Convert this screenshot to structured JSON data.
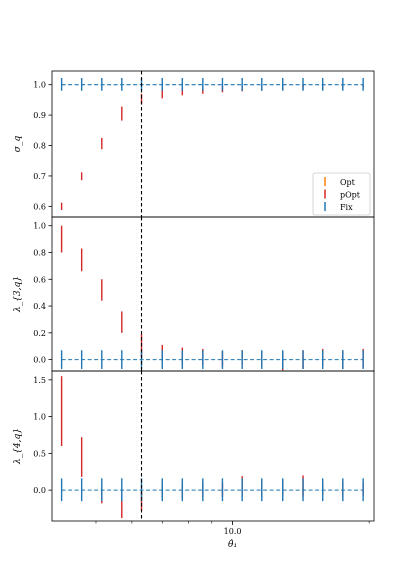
{
  "chart_data": {
    "type": "errorbar",
    "x_scale": "log",
    "x_positions": [
      4.2,
      4.65,
      5.15,
      5.7,
      6.3,
      7.0,
      7.75,
      8.6,
      9.5,
      10.5,
      11.6,
      12.9,
      14.3,
      15.8,
      17.5,
      19.4
    ],
    "vline_x": 6.3,
    "xlabel": "θ̂₁",
    "x_ticks": [
      {
        "value": 10.0,
        "label": "10.0"
      }
    ],
    "legend": {
      "placement": "lower-right",
      "panel": 0,
      "entries": [
        "Opt",
        "pOpt",
        "Fix"
      ]
    },
    "colors": {
      "Opt": "#ff7f0e",
      "pOpt": "#d62728",
      "Fix": "#1f77b4",
      "vline": "#000000"
    },
    "panels": [
      {
        "ylabel": "σ_q",
        "ylim": [
          0.565,
          1.045
        ],
        "yticks": [
          0.6,
          0.7,
          0.8,
          0.9,
          1.0
        ],
        "ytick_labels": [
          "0.6",
          "0.7",
          "0.8",
          "0.9",
          "1.0"
        ],
        "series": [
          {
            "name": "pOpt",
            "lo": [
              0.588,
              0.686,
              0.788,
              0.882,
              0.935,
              0.955,
              0.965,
              0.97,
              0.975,
              0.978,
              0.98,
              0.982,
              0.985,
              0.986,
              0.988,
              0.99
            ],
            "hi": [
              0.612,
              0.712,
              0.825,
              0.928,
              0.97,
              0.99,
              0.993,
              0.995,
              0.996,
              0.997,
              0.998,
              0.998,
              0.999,
              0.999,
              0.999,
              0.999
            ]
          },
          {
            "name": "Fix",
            "lo": [
              0.98,
              0.98,
              0.98,
              0.98,
              0.98,
              0.98,
              0.98,
              0.98,
              0.98,
              0.98,
              0.98,
              0.98,
              0.98,
              0.98,
              0.98,
              0.98
            ],
            "hi": [
              1.022,
              1.022,
              1.022,
              1.022,
              1.022,
              1.022,
              1.022,
              1.022,
              1.022,
              1.022,
              1.022,
              1.022,
              1.022,
              1.022,
              1.022,
              1.022
            ],
            "line": 1.0
          }
        ]
      },
      {
        "ylabel": "λ_{3,q}",
        "ylim": [
          -0.085,
          1.065
        ],
        "yticks": [
          0.0,
          0.2,
          0.4,
          0.6,
          0.8,
          1.0
        ],
        "ytick_labels": [
          "0.0",
          "0.2",
          "0.4",
          "0.6",
          "0.8",
          "1.0"
        ],
        "series": [
          {
            "name": "pOpt",
            "lo": [
              0.8,
              0.66,
              0.44,
              0.2,
              0.02,
              -0.02,
              -0.04,
              -0.04,
              -0.05,
              -0.04,
              -0.05,
              -0.08,
              -0.07,
              -0.05,
              -0.07,
              -0.06
            ],
            "hi": [
              1.0,
              0.83,
              0.6,
              0.36,
              0.19,
              0.11,
              0.09,
              0.08,
              0.06,
              0.07,
              0.06,
              0.06,
              0.07,
              0.08,
              0.07,
              0.08
            ]
          },
          {
            "name": "Fix",
            "lo": [
              -0.07,
              -0.07,
              -0.07,
              -0.07,
              -0.07,
              -0.07,
              -0.07,
              -0.07,
              -0.07,
              -0.07,
              -0.07,
              -0.07,
              -0.07,
              -0.07,
              -0.07,
              -0.07
            ],
            "hi": [
              0.07,
              0.07,
              0.07,
              0.07,
              0.07,
              0.07,
              0.07,
              0.07,
              0.07,
              0.07,
              0.07,
              0.07,
              0.07,
              0.07,
              0.07,
              0.07
            ],
            "line": 0.0
          }
        ]
      },
      {
        "ylabel": "λ_{4,q}",
        "ylim": [
          -0.42,
          1.62
        ],
        "yticks": [
          0.0,
          0.5,
          1.0,
          1.5
        ],
        "ytick_labels": [
          "0.0",
          "0.5",
          "1.0",
          "1.5"
        ],
        "series": [
          {
            "name": "pOpt",
            "lo": [
              0.6,
              0.18,
              -0.18,
              -0.38,
              -0.28,
              -0.1,
              -0.12,
              -0.1,
              -0.09,
              -0.08,
              -0.1,
              -0.08,
              -0.09,
              -0.07,
              -0.1,
              -0.08
            ],
            "hi": [
              1.55,
              0.72,
              0.05,
              -0.05,
              -0.02,
              0.07,
              0.1,
              0.12,
              0.1,
              0.19,
              0.12,
              0.14,
              0.2,
              0.12,
              0.12,
              0.1
            ]
          },
          {
            "name": "Fix",
            "lo": [
              -0.15,
              -0.15,
              -0.15,
              -0.15,
              -0.15,
              -0.15,
              -0.15,
              -0.15,
              -0.15,
              -0.15,
              -0.15,
              -0.15,
              -0.15,
              -0.15,
              -0.15,
              -0.15
            ],
            "hi": [
              0.16,
              0.16,
              0.16,
              0.16,
              0.16,
              0.16,
              0.16,
              0.16,
              0.16,
              0.16,
              0.16,
              0.16,
              0.16,
              0.16,
              0.16,
              0.16
            ],
            "line": 0.0
          }
        ]
      }
    ]
  }
}
